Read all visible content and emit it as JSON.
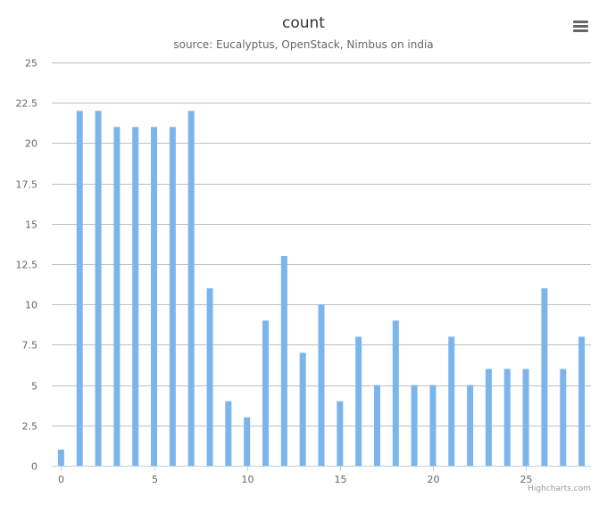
{
  "chart_data": {
    "type": "bar",
    "title": "count",
    "subtitle": "source: Eucalyptus, OpenStack, Nimbus on india",
    "x": [
      0,
      1,
      2,
      3,
      4,
      5,
      6,
      7,
      8,
      9,
      10,
      11,
      12,
      13,
      14,
      15,
      16,
      17,
      18,
      19,
      20,
      21,
      22,
      23,
      24,
      25,
      26,
      27,
      28
    ],
    "values": [
      1,
      22,
      22,
      21,
      21,
      21,
      21,
      22,
      11,
      4,
      3,
      9,
      13,
      7,
      10,
      4,
      8,
      5,
      9,
      5,
      5,
      8,
      5,
      6,
      6,
      6,
      11,
      6,
      8
    ],
    "xlim": [
      -0.5,
      28.5
    ],
    "ylim": [
      0,
      25
    ],
    "x_ticks": [
      0,
      5,
      10,
      15,
      20,
      25
    ],
    "x_tick_labels": [
      "0",
      "5",
      "10",
      "15",
      "20",
      "25"
    ],
    "y_ticks": [
      0,
      2.5,
      5,
      7.5,
      10,
      12.5,
      15,
      17.5,
      20,
      22.5,
      25
    ],
    "y_tick_labels": [
      "0",
      "2.5",
      "5",
      "7.5",
      "10",
      "12.5",
      "15",
      "17.5",
      "20",
      "22.5",
      "25"
    ],
    "xlabel": "",
    "ylabel": "",
    "grid": true,
    "legend": false,
    "colors": {
      "bar": "#7cb5ec",
      "grid": "#c0c0c0",
      "axis": "#c0d0e0",
      "tick_label": "#666666"
    }
  },
  "credits": "Highcharts.com",
  "menu_icon": "hamburger-menu-icon"
}
